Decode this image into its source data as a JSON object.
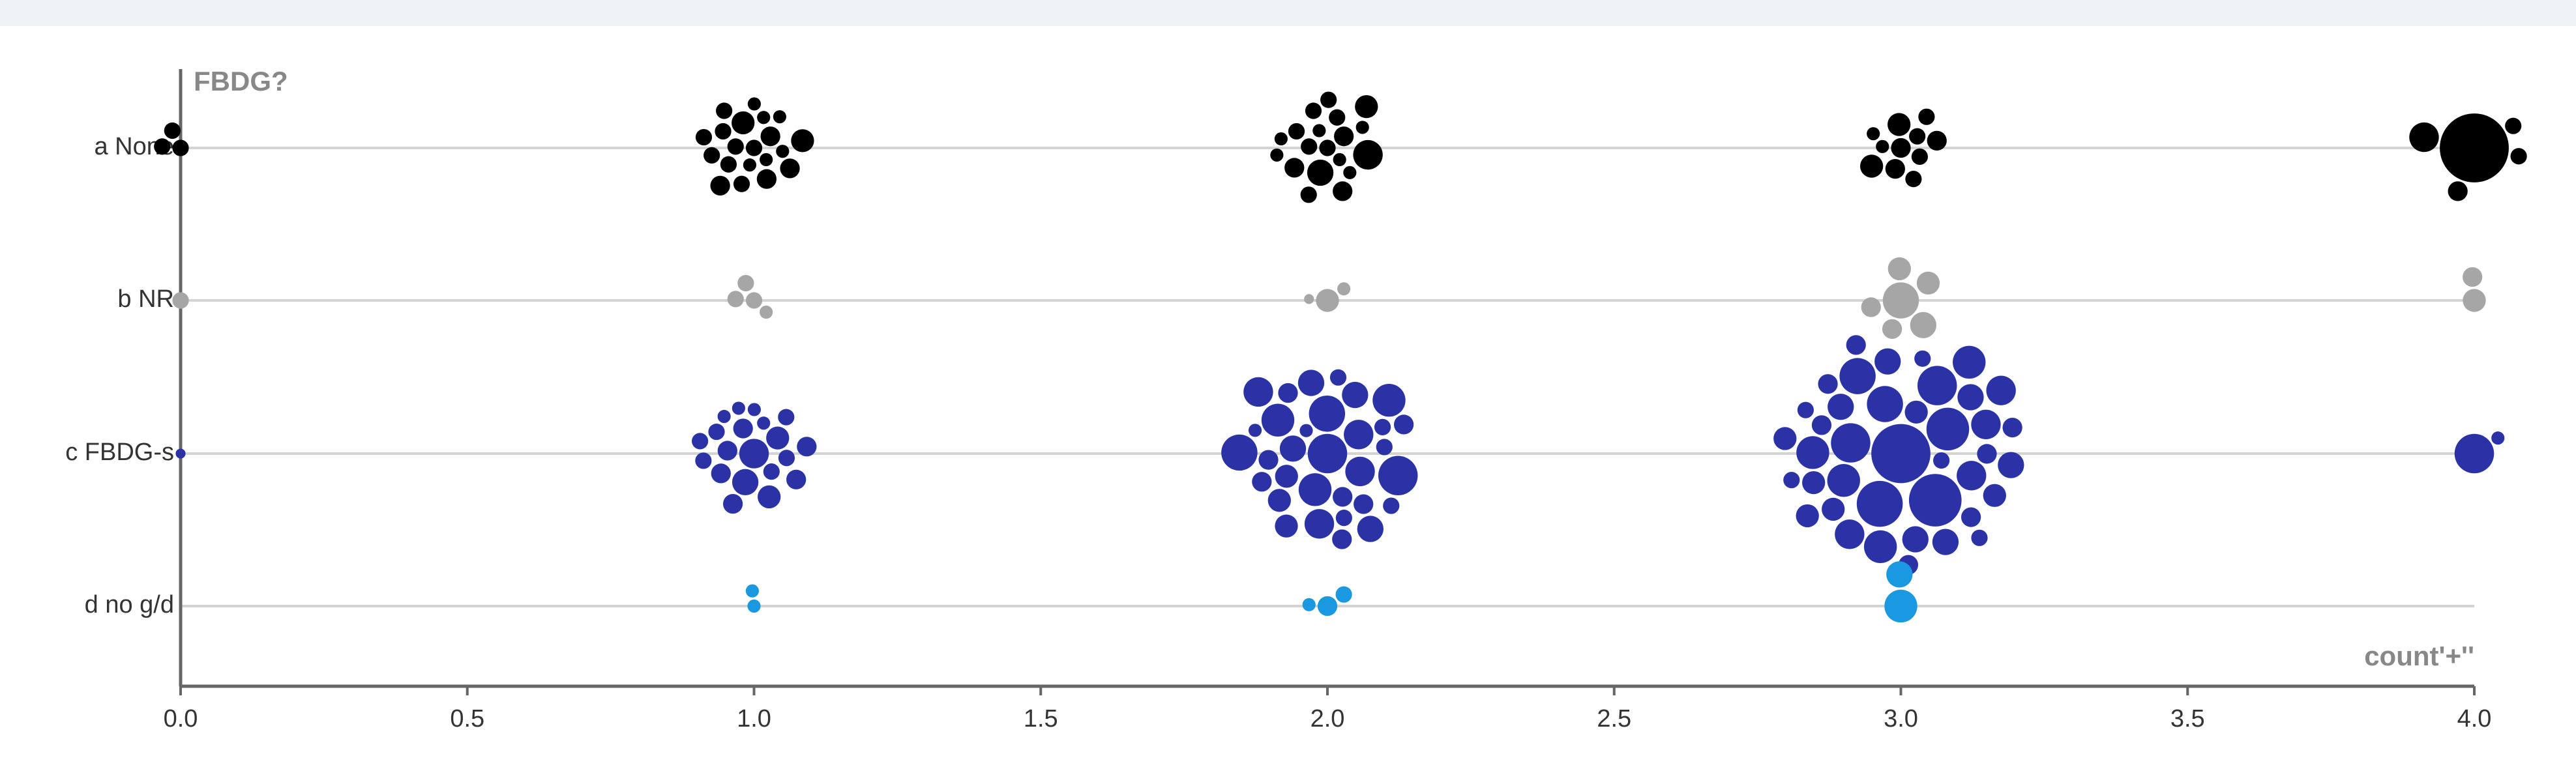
{
  "chart_data": {
    "type": "beeswarm",
    "y_label": "FBDG?",
    "x_label": "count'+''",
    "xlim": [
      0,
      4
    ],
    "xticks": [
      {
        "value": 0,
        "label": "0.0"
      },
      {
        "value": 0.5,
        "label": "0.5"
      },
      {
        "value": 1,
        "label": "1.0"
      },
      {
        "value": 1.5,
        "label": "1.5"
      },
      {
        "value": 2,
        "label": "2.0"
      },
      {
        "value": 2.5,
        "label": "2.5"
      },
      {
        "value": 3,
        "label": "3.0"
      },
      {
        "value": 3.5,
        "label": "3.5"
      },
      {
        "value": 4,
        "label": "4.0"
      }
    ],
    "series": [
      {
        "name": "a None",
        "color": "#000000",
        "x": [
          0,
          0,
          0,
          1,
          1,
          1,
          1,
          1,
          1,
          1,
          1,
          1,
          1,
          1,
          1,
          1,
          1,
          1,
          1,
          1,
          1,
          1,
          1,
          2,
          2,
          2,
          2,
          2,
          2,
          2,
          2,
          2,
          2,
          2,
          2,
          2,
          2,
          2,
          2,
          2,
          2,
          2,
          3,
          3,
          3,
          3,
          3,
          3,
          3,
          3,
          3,
          3,
          3,
          4,
          4,
          4,
          4,
          4
        ],
        "size": [
          5,
          5,
          5,
          5,
          4,
          6,
          5,
          4,
          7,
          5,
          4,
          6,
          5,
          4,
          5,
          6,
          4,
          5,
          7,
          4,
          5,
          6,
          5,
          5,
          4,
          6,
          5,
          8,
          4,
          5,
          9,
          5,
          4,
          6,
          5,
          4,
          6,
          5,
          4,
          5,
          7,
          4,
          6,
          5,
          7,
          5,
          4,
          6,
          7,
          5,
          4,
          6,
          5,
          21,
          9,
          6,
          5,
          5
        ]
      },
      {
        "name": "b NR",
        "color": "#a6a6a6",
        "x": [
          0,
          1,
          1,
          1,
          1,
          2,
          2,
          2,
          3,
          3,
          3,
          3,
          3,
          3,
          4,
          4
        ],
        "size": [
          5,
          5,
          5,
          5,
          4,
          7,
          4,
          3,
          11,
          8,
          7,
          7,
          6,
          6,
          7,
          6
        ]
      },
      {
        "name": "c FBDG-s",
        "color": "#2b32a6",
        "x": [
          0,
          1,
          1,
          1,
          1,
          1,
          1,
          1,
          1,
          1,
          1,
          1,
          1,
          1,
          1,
          1,
          1,
          1,
          1,
          1,
          1,
          2,
          2,
          2,
          2,
          2,
          2,
          2,
          2,
          2,
          2,
          2,
          2,
          2,
          2,
          2,
          2,
          2,
          2,
          2,
          2,
          2,
          2,
          2,
          2,
          2,
          2,
          2,
          2,
          2,
          2,
          2,
          2,
          3,
          3,
          3,
          3,
          3,
          3,
          3,
          3,
          3,
          3,
          3,
          3,
          3,
          3,
          3,
          3,
          3,
          3,
          3,
          3,
          3,
          3,
          3,
          3,
          3,
          3,
          3,
          3,
          3,
          3,
          3,
          3,
          3,
          3,
          3,
          3,
          3,
          3,
          3,
          3,
          4,
          4
        ],
        "size": [
          3,
          9,
          7,
          6,
          8,
          5,
          6,
          5,
          4,
          6,
          7,
          5,
          4,
          6,
          5,
          6,
          4,
          5,
          6,
          4,
          5,
          12,
          10,
          9,
          8,
          11,
          9,
          7,
          6,
          10,
          5,
          6,
          8,
          12,
          6,
          5,
          9,
          7,
          8,
          6,
          5,
          10,
          6,
          4,
          7,
          5,
          11,
          8,
          6,
          5,
          9,
          4,
          6,
          18,
          16,
          14,
          12,
          13,
          11,
          10,
          12,
          9,
          8,
          10,
          11,
          8,
          7,
          9,
          10,
          8,
          6,
          7,
          8,
          6,
          5,
          9,
          7,
          6,
          8,
          5,
          7,
          6,
          5,
          10,
          8,
          7,
          6,
          5,
          9,
          7,
          6,
          5,
          6,
          12,
          4
        ]
      },
      {
        "name": "d no g/d",
        "color": "#1a98e0",
        "x": [
          1,
          1,
          2,
          2,
          2,
          3,
          3
        ],
        "size": [
          4,
          4,
          6,
          5,
          4,
          10,
          8
        ]
      }
    ]
  }
}
